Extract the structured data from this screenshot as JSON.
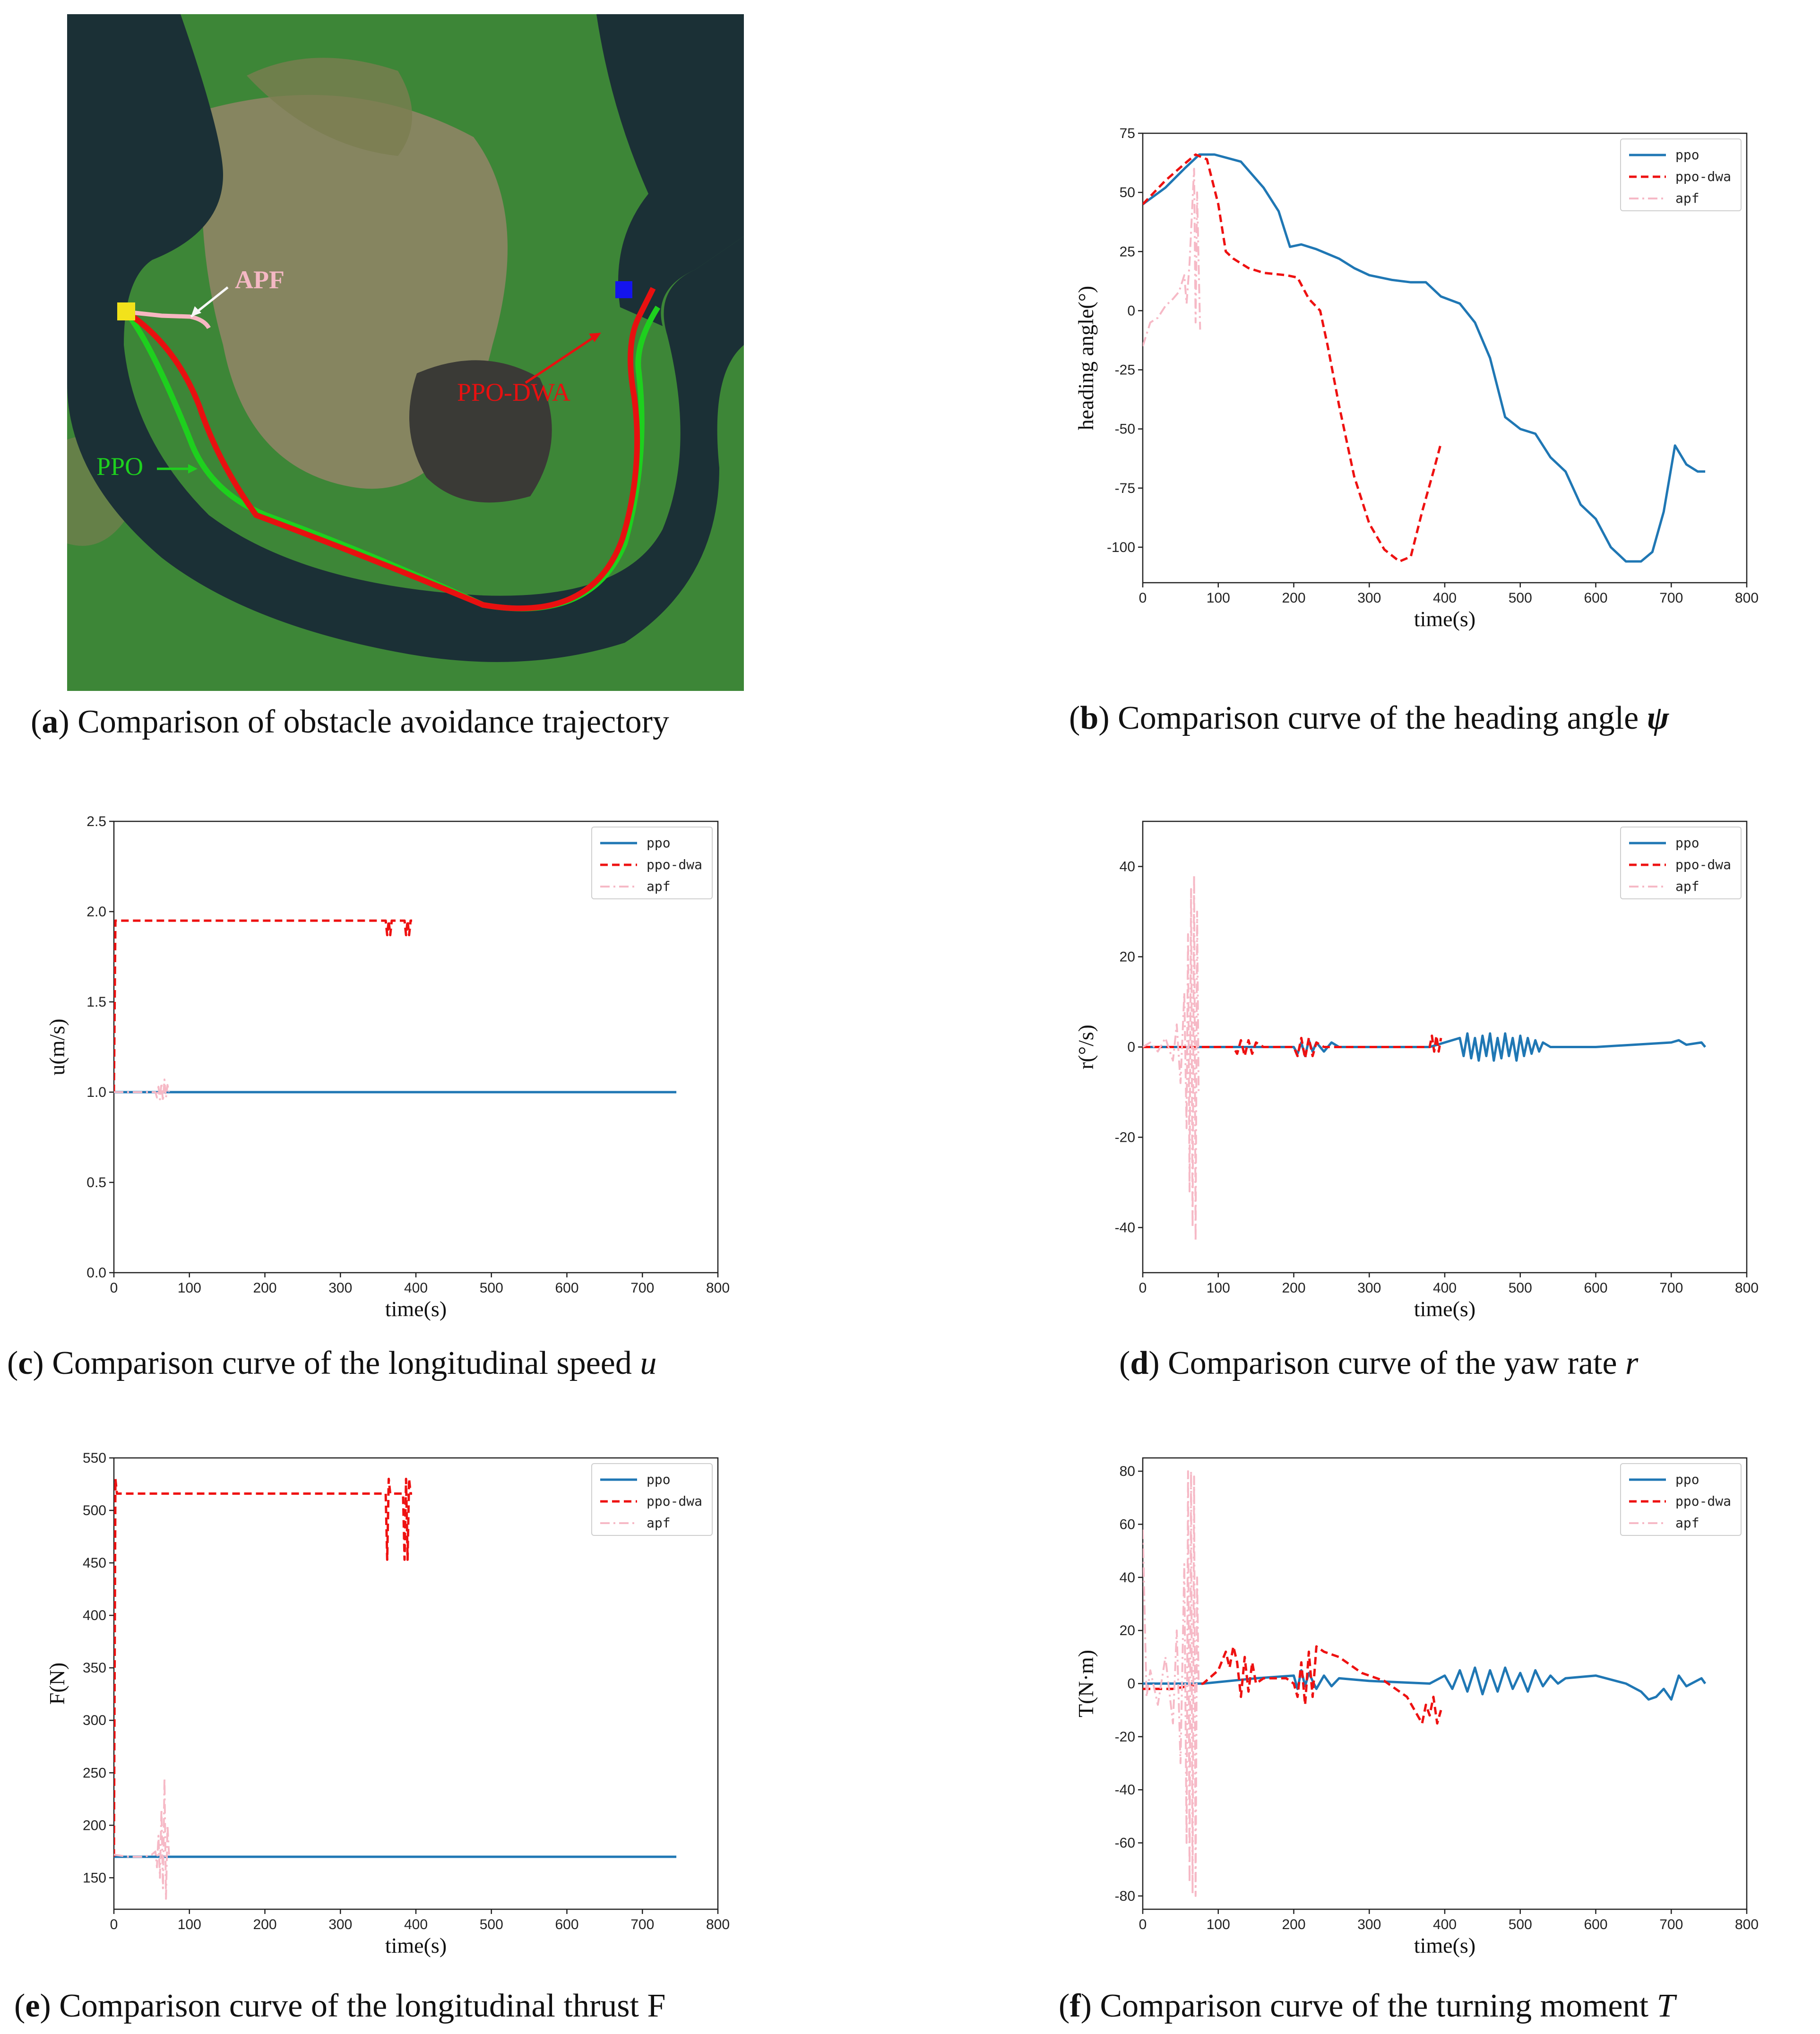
{
  "captions": {
    "a": {
      "letter": "a",
      "text": " Comparison of obstacle avoidance trajectory"
    },
    "b": {
      "letter": "b",
      "text": " Comparison curve of the heading angle ",
      "symbol": "ψ"
    },
    "c": {
      "letter": "c",
      "text": " Comparison curve of the longitudinal speed ",
      "symbol": "u"
    },
    "d": {
      "letter": "d",
      "text": " Comparison curve of the yaw rate ",
      "symbol": "r"
    },
    "e": {
      "letter": "e",
      "text": " Comparison curve of the longitudinal thrust F",
      "symbol": ""
    },
    "f": {
      "letter": "f",
      "text": " Comparison curve of the turning moment ",
      "symbol": "T"
    }
  },
  "map": {
    "labels": {
      "apf": "APF",
      "ppo_dwa": "PPO-DWA",
      "ppo": "PPO"
    },
    "colors": {
      "water": "#1b3036",
      "land": "#3f8a3a",
      "farmland": "#8c8460",
      "ppo": "#1ed01e",
      "ppo_dwa": "#e81010",
      "apf": "#f7b7c2",
      "start": "#f2e21b",
      "goal": "#1414ee"
    }
  },
  "legend": {
    "ppo": "ppo",
    "ppo_dwa": "ppo-dwa",
    "apf": "apf"
  },
  "colors": {
    "ppo": "#1f77b4",
    "ppo_dwa": "#ee1111",
    "apf": "#f6b9c6"
  },
  "chart_data": [
    {
      "id": "b",
      "type": "line",
      "xlabel": "time(s)",
      "ylabel": "heading angle(°)",
      "xlim": [
        0,
        800
      ],
      "ylim": [
        -115,
        75
      ],
      "xticks": [
        0,
        100,
        200,
        300,
        400,
        500,
        600,
        700,
        800
      ],
      "yticks": [
        75,
        50,
        25,
        0,
        -25,
        -50,
        -75,
        -100
      ],
      "series": [
        {
          "name": "ppo",
          "x": [
            0,
            30,
            55,
            75,
            95,
            130,
            160,
            180,
            195,
            210,
            230,
            260,
            280,
            300,
            330,
            355,
            375,
            395,
            420,
            440,
            460,
            480,
            500,
            520,
            540,
            560,
            580,
            600,
            620,
            640,
            660,
            675,
            690,
            705,
            720,
            735,
            745
          ],
          "y": [
            45,
            52,
            60,
            66,
            66,
            63,
            52,
            42,
            27,
            28,
            26,
            22,
            18,
            15,
            13,
            12,
            12,
            6,
            3,
            -5,
            -20,
            -45,
            -50,
            -52,
            -62,
            -68,
            -82,
            -88,
            -100,
            -106,
            -106,
            -102,
            -85,
            -57,
            -65,
            -68,
            -68
          ]
        },
        {
          "name": "ppo-dwa",
          "x": [
            0,
            30,
            55,
            70,
            85,
            100,
            110,
            120,
            140,
            160,
            190,
            205,
            220,
            235,
            245,
            260,
            280,
            300,
            320,
            340,
            355,
            370,
            385,
            395
          ],
          "y": [
            45,
            55,
            62,
            66,
            64,
            45,
            25,
            22,
            18,
            16,
            15,
            14,
            5,
            0,
            -15,
            -40,
            -70,
            -90,
            -101,
            -106,
            -104,
            -85,
            -68,
            -56
          ]
        },
        {
          "name": "apf",
          "x": [
            0,
            10,
            20,
            30,
            40,
            48,
            55,
            58,
            62,
            65,
            68,
            70,
            72,
            74,
            76
          ],
          "y": [
            -15,
            -5,
            -3,
            2,
            5,
            8,
            15,
            3,
            20,
            40,
            60,
            -5,
            50,
            20,
            -8
          ]
        }
      ]
    },
    {
      "id": "c",
      "type": "line",
      "xlabel": "time(s)",
      "ylabel": "u(m/s)",
      "xlim": [
        0,
        800
      ],
      "ylim": [
        0,
        2.5
      ],
      "xticks": [
        0,
        100,
        200,
        300,
        400,
        500,
        600,
        700,
        800
      ],
      "yticks": [
        2.5,
        2.0,
        1.5,
        1.0,
        0.5,
        0.0
      ],
      "series": [
        {
          "name": "ppo",
          "x": [
            0,
            745
          ],
          "y": [
            1.0,
            1.0
          ]
        },
        {
          "name": "ppo-dwa",
          "x": [
            0,
            2,
            5,
            360,
            362,
            364,
            366,
            368,
            385,
            387,
            389,
            391,
            393,
            395
          ],
          "y": [
            1.0,
            1.95,
            1.95,
            1.95,
            1.87,
            1.95,
            1.87,
            1.95,
            1.95,
            1.87,
            1.95,
            1.87,
            1.95,
            1.95
          ]
        },
        {
          "name": "apf",
          "x": [
            0,
            40,
            55,
            57,
            59,
            61,
            63,
            65,
            67,
            69,
            71,
            73
          ],
          "y": [
            1.0,
            1.0,
            1.0,
            0.97,
            1.03,
            0.96,
            1.05,
            0.95,
            1.07,
            0.97,
            1.04,
            1.0
          ]
        }
      ]
    },
    {
      "id": "d",
      "type": "line",
      "xlabel": "time(s)",
      "ylabel": "r(°/s)",
      "xlim": [
        0,
        800
      ],
      "ylim": [
        -50,
        50
      ],
      "xticks": [
        0,
        100,
        200,
        300,
        400,
        500,
        600,
        700,
        800
      ],
      "yticks": [
        40,
        20,
        0,
        -20,
        -40
      ],
      "series": [
        {
          "name": "ppo",
          "x": [
            0,
            80,
            200,
            205,
            210,
            215,
            220,
            225,
            230,
            240,
            250,
            260,
            300,
            380,
            420,
            425,
            430,
            435,
            440,
            445,
            450,
            455,
            460,
            465,
            470,
            475,
            480,
            485,
            490,
            495,
            500,
            505,
            510,
            515,
            520,
            525,
            530,
            540,
            550,
            600,
            650,
            700,
            710,
            720,
            740,
            745
          ],
          "y": [
            0,
            0,
            0,
            -1.5,
            1,
            -2,
            1.5,
            -1,
            1,
            -1,
            1,
            0,
            0,
            0,
            2,
            -2,
            3,
            -2.5,
            2,
            -3,
            2.5,
            -2,
            3,
            -3,
            2,
            -2.5,
            3,
            -2,
            2,
            -3,
            2.5,
            -2,
            2,
            -1.5,
            1.5,
            -1,
            1,
            0,
            0,
            0,
            0.5,
            1,
            1.5,
            0.5,
            1,
            0
          ]
        },
        {
          "name": "ppo-dwa",
          "x": [
            0,
            80,
            120,
            125,
            130,
            135,
            140,
            145,
            150,
            160,
            200,
            205,
            210,
            215,
            220,
            225,
            230,
            240,
            300,
            380,
            383,
            386,
            389,
            392,
            395
          ],
          "y": [
            0,
            0,
            0,
            -1.5,
            1.5,
            -2,
            1.5,
            -1.5,
            1,
            0,
            0,
            -2,
            2,
            -2.5,
            2,
            -2,
            1,
            0,
            0,
            0,
            2.5,
            -1,
            2.5,
            -1,
            2
          ]
        },
        {
          "name": "apf",
          "x": [
            0,
            10,
            20,
            30,
            40,
            45,
            50,
            55,
            58,
            60,
            62,
            64,
            66,
            68,
            70,
            72,
            74
          ],
          "y": [
            0,
            1,
            -1,
            2,
            -3,
            5,
            -8,
            12,
            -18,
            25,
            -32,
            35,
            -40,
            38,
            -43,
            30,
            -10
          ]
        }
      ]
    },
    {
      "id": "e",
      "type": "line",
      "xlabel": "time(s)",
      "ylabel": "F(N)",
      "xlim": [
        0,
        800
      ],
      "ylim": [
        120,
        550
      ],
      "xticks": [
        0,
        100,
        200,
        300,
        400,
        500,
        600,
        700,
        800
      ],
      "yticks": [
        550,
        500,
        450,
        400,
        350,
        300,
        250,
        200,
        150
      ],
      "series": [
        {
          "name": "ppo",
          "x": [
            0,
            745
          ],
          "y": [
            170,
            170
          ]
        },
        {
          "name": "ppo-dwa",
          "x": [
            0,
            2,
            4,
            6,
            360,
            362,
            364,
            366,
            368,
            383,
            385,
            387,
            389,
            391,
            393,
            395
          ],
          "y": [
            170,
            530,
            516,
            516,
            516,
            453,
            530,
            516,
            516,
            516,
            453,
            530,
            453,
            530,
            516,
            516
          ]
        },
        {
          "name": "apf",
          "x": [
            0,
            20,
            40,
            50,
            55,
            57,
            59,
            61,
            63,
            65,
            67,
            69,
            71,
            73
          ],
          "y": [
            172,
            170,
            170,
            172,
            175,
            160,
            190,
            150,
            215,
            140,
            245,
            130,
            200,
            172
          ]
        }
      ]
    },
    {
      "id": "f",
      "type": "line",
      "xlabel": "time(s)",
      "ylabel": "T(N·m)",
      "xlim": [
        0,
        800
      ],
      "ylim": [
        -85,
        85
      ],
      "xticks": [
        0,
        100,
        200,
        300,
        400,
        500,
        600,
        700,
        800
      ],
      "yticks": [
        80,
        60,
        40,
        20,
        0,
        -20,
        -40,
        -60,
        -80
      ],
      "series": [
        {
          "name": "ppo",
          "x": [
            0,
            80,
            150,
            200,
            205,
            210,
            215,
            220,
            230,
            240,
            250,
            260,
            300,
            380,
            400,
            410,
            420,
            430,
            440,
            450,
            460,
            470,
            480,
            490,
            500,
            510,
            520,
            530,
            540,
            550,
            560,
            600,
            640,
            660,
            670,
            680,
            690,
            700,
            710,
            720,
            740,
            745
          ],
          "y": [
            0,
            0,
            2,
            3,
            -2,
            5,
            -1,
            4,
            -2,
            3,
            -1,
            2,
            1,
            0,
            3,
            -2,
            5,
            -3,
            6,
            -4,
            5,
            -3,
            6,
            -2,
            4,
            -3,
            5,
            -1,
            3,
            0,
            2,
            3,
            0,
            -3,
            -6,
            -5,
            -2,
            -6,
            3,
            -1,
            2,
            0
          ]
        },
        {
          "name": "ppo-dwa",
          "x": [
            0,
            40,
            80,
            100,
            110,
            115,
            120,
            125,
            130,
            135,
            140,
            145,
            150,
            160,
            190,
            200,
            205,
            210,
            215,
            220,
            225,
            230,
            240,
            260,
            290,
            320,
            350,
            360,
            370,
            375,
            380,
            385,
            390,
            395
          ],
          "y": [
            -2,
            -2,
            0,
            5,
            12,
            6,
            14,
            8,
            -5,
            10,
            -3,
            8,
            0,
            2,
            2,
            0,
            -5,
            8,
            -8,
            12,
            -5,
            14,
            12,
            10,
            4,
            1,
            -5,
            -10,
            -15,
            -8,
            -12,
            -5,
            -15,
            -10
          ]
        },
        {
          "name": "apf",
          "x": [
            0,
            5,
            10,
            20,
            30,
            40,
            45,
            50,
            55,
            58,
            60,
            62,
            64,
            66,
            68,
            70,
            72,
            74
          ],
          "y": [
            58,
            -5,
            5,
            -8,
            10,
            -15,
            20,
            -30,
            45,
            -60,
            80,
            -75,
            80,
            -79,
            78,
            -80,
            40,
            0
          ]
        }
      ]
    }
  ]
}
